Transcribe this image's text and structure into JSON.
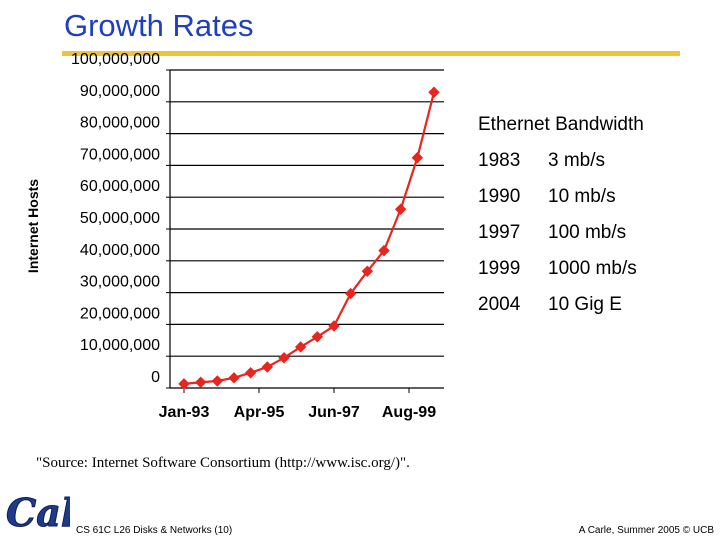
{
  "slide": {
    "title": "Growth Rates",
    "source": "\"Source: Internet Software Consortium (http://www.isc.org/)\".",
    "footer_left": "CS 61C L26 Disks & Networks (10)",
    "footer_right": "A Carle, Summer 2005 © UCB",
    "logo_text": "Cal",
    "accent": "#f0c43a",
    "title_color": "#1f3fbf",
    "series_color": "#e8251f"
  },
  "bandwidth": {
    "title": "Ethernet Bandwidth",
    "rows": [
      {
        "year": "1983",
        "speed": "3 mb/s"
      },
      {
        "year": "1990",
        "speed": "10 mb/s"
      },
      {
        "year": "1997",
        "speed": "100 mb/s"
      },
      {
        "year": "1999",
        "speed": "1000 mb/s"
      },
      {
        "year": "2004",
        "speed": "10 Gig E"
      }
    ]
  },
  "chart_data": {
    "type": "line",
    "ylabel": "Internet Hosts",
    "ylim": [
      0,
      100000000
    ],
    "y_ticks": [
      0,
      10000000,
      20000000,
      30000000,
      40000000,
      50000000,
      60000000,
      70000000,
      80000000,
      90000000,
      100000000
    ],
    "y_tick_labels": [
      "0",
      "10,000,000",
      "20,000,000",
      "30,000,000",
      "40,000,000",
      "50,000,000",
      "60,000,000",
      "70,000,000",
      "80,000,000",
      "90,000,000",
      "100,000,000"
    ],
    "x_tick_labels": [
      "Jan-93",
      "Apr-95",
      "Jun-97",
      "Aug-99"
    ],
    "x_tick_index": [
      0,
      4.5,
      9,
      13.5
    ],
    "x_index_range": [
      0,
      15
    ],
    "grid": "horizontal",
    "legend": "none",
    "points": [
      {
        "x": 0,
        "y": 1300000
      },
      {
        "x": 1,
        "y": 1800000
      },
      {
        "x": 2,
        "y": 2200000
      },
      {
        "x": 3,
        "y": 3200000
      },
      {
        "x": 4,
        "y": 4800000
      },
      {
        "x": 5,
        "y": 6600000
      },
      {
        "x": 6,
        "y": 9500000
      },
      {
        "x": 7,
        "y": 12900000
      },
      {
        "x": 8,
        "y": 16100000
      },
      {
        "x": 9,
        "y": 19500000
      },
      {
        "x": 10,
        "y": 29700000
      },
      {
        "x": 11,
        "y": 36700000
      },
      {
        "x": 12,
        "y": 43200000
      },
      {
        "x": 13,
        "y": 56200000
      },
      {
        "x": 14,
        "y": 72400000
      },
      {
        "x": 15,
        "y": 93000000
      }
    ]
  }
}
